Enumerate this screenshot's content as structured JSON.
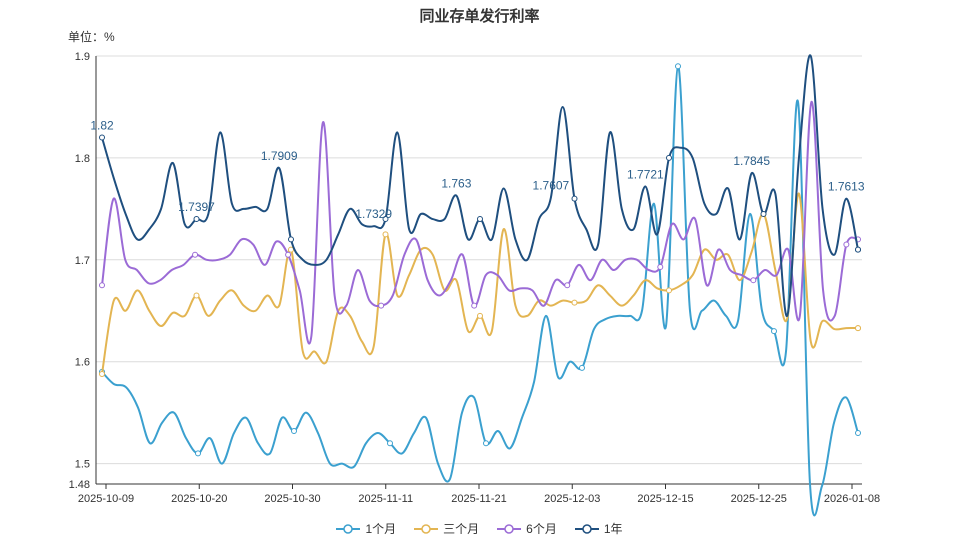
{
  "chart_data": {
    "type": "line",
    "title": "同业存单发行利率",
    "unit_label": "单位：%",
    "ylim": [
      1.48,
      1.9
    ],
    "y_ticks": [
      "1.9",
      "1.8",
      "1.7",
      "1.6",
      "1.5",
      "1.48"
    ],
    "x_ticks": [
      "2025-10-09",
      "2025-10-20",
      "2025-10-30",
      "2025-11-11",
      "2025-11-21",
      "2025-12-03",
      "2025-12-15",
      "2025-12-25",
      "2026-01-08"
    ],
    "grid": true,
    "legend_position": "bottom",
    "series": [
      {
        "name": "1个月",
        "color": "#3ba0cf",
        "values": [
          1.59,
          1.578,
          1.575,
          1.555,
          1.52,
          1.54,
          1.55,
          1.525,
          1.51,
          1.525,
          1.5,
          1.53,
          1.545,
          1.52,
          1.51,
          1.545,
          1.532,
          1.55,
          1.53,
          1.5,
          1.5,
          1.497,
          1.52,
          1.53,
          1.52,
          1.51,
          1.53,
          1.545,
          1.5,
          1.485,
          1.55,
          1.565,
          1.52,
          1.532,
          1.515,
          1.545,
          1.58,
          1.645,
          1.585,
          1.6,
          1.594,
          1.632,
          1.642,
          1.645,
          1.645,
          1.65,
          1.755,
          1.635,
          1.89,
          1.65,
          1.65,
          1.66,
          1.645,
          1.64,
          1.745,
          1.65,
          1.63,
          1.61,
          1.855,
          1.48,
          1.478,
          1.54,
          1.565,
          1.53
        ]
      },
      {
        "name": "三个月",
        "color": "#e3b552",
        "values": [
          1.588,
          1.66,
          1.65,
          1.67,
          1.65,
          1.635,
          1.648,
          1.645,
          1.665,
          1.645,
          1.66,
          1.67,
          1.655,
          1.65,
          1.665,
          1.655,
          1.71,
          1.61,
          1.61,
          1.6,
          1.65,
          1.645,
          1.62,
          1.615,
          1.725,
          1.665,
          1.685,
          1.71,
          1.705,
          1.67,
          1.68,
          1.63,
          1.645,
          1.63,
          1.73,
          1.655,
          1.645,
          1.66,
          1.655,
          1.66,
          1.658,
          1.66,
          1.675,
          1.665,
          1.655,
          1.665,
          1.68,
          1.672,
          1.67,
          1.675,
          1.685,
          1.71,
          1.7,
          1.705,
          1.68,
          1.708,
          1.745,
          1.69,
          1.642,
          1.765,
          1.62,
          1.64,
          1.632,
          1.633,
          1.633
        ]
      },
      {
        "name": "6个月",
        "color": "#9b6bd6",
        "values": [
          1.675,
          1.76,
          1.7,
          1.69,
          1.677,
          1.68,
          1.69,
          1.695,
          1.705,
          1.7,
          1.7,
          1.705,
          1.72,
          1.715,
          1.695,
          1.718,
          1.705,
          1.67,
          1.625,
          1.835,
          1.665,
          1.655,
          1.69,
          1.66,
          1.655,
          1.665,
          1.705,
          1.72,
          1.68,
          1.665,
          1.68,
          1.705,
          1.655,
          1.685,
          1.685,
          1.67,
          1.672,
          1.67,
          1.655,
          1.68,
          1.675,
          1.695,
          1.68,
          1.7,
          1.69,
          1.7,
          1.7,
          1.69,
          1.693,
          1.735,
          1.72,
          1.74,
          1.675,
          1.71,
          1.69,
          1.685,
          1.68,
          1.69,
          1.685,
          1.71,
          1.645,
          1.855,
          1.67,
          1.645,
          1.715,
          1.72
        ]
      },
      {
        "name": "1年",
        "color": "#1f4f7f",
        "values": [
          1.82,
          1.78,
          1.745,
          1.72,
          1.73,
          1.75,
          1.795,
          1.735,
          1.74,
          1.745,
          1.825,
          1.755,
          1.75,
          1.752,
          1.75,
          1.79,
          1.72,
          1.7,
          1.695,
          1.7,
          1.725,
          1.75,
          1.735,
          1.733,
          1.74,
          1.825,
          1.73,
          1.745,
          1.74,
          1.74,
          1.763,
          1.72,
          1.74,
          1.72,
          1.77,
          1.72,
          1.7,
          1.74,
          1.761,
          1.85,
          1.76,
          1.73,
          1.715,
          1.825,
          1.75,
          1.73,
          1.772,
          1.725,
          1.8,
          1.81,
          1.8,
          1.755,
          1.745,
          1.77,
          1.72,
          1.785,
          1.745,
          1.765,
          1.645,
          1.8,
          1.9,
          1.75,
          1.705,
          1.76,
          1.71
        ]
      }
    ],
    "annotations": [
      {
        "text": "1.82",
        "series": "1年",
        "index": 0
      },
      {
        "text": "1.7397",
        "series": "1年",
        "index": 8
      },
      {
        "text": "1.7909",
        "series": "1年",
        "index": 15
      },
      {
        "text": "1.7329",
        "series": "1年",
        "index": 23
      },
      {
        "text": "1.763",
        "series": "1年",
        "index": 30
      },
      {
        "text": "1.7607",
        "series": "1年",
        "index": 38
      },
      {
        "text": "1.7721",
        "series": "1年",
        "index": 46
      },
      {
        "text": "1.7845",
        "series": "1年",
        "index": 55
      },
      {
        "text": "1.7613",
        "series": "1年",
        "index": 63
      }
    ]
  }
}
